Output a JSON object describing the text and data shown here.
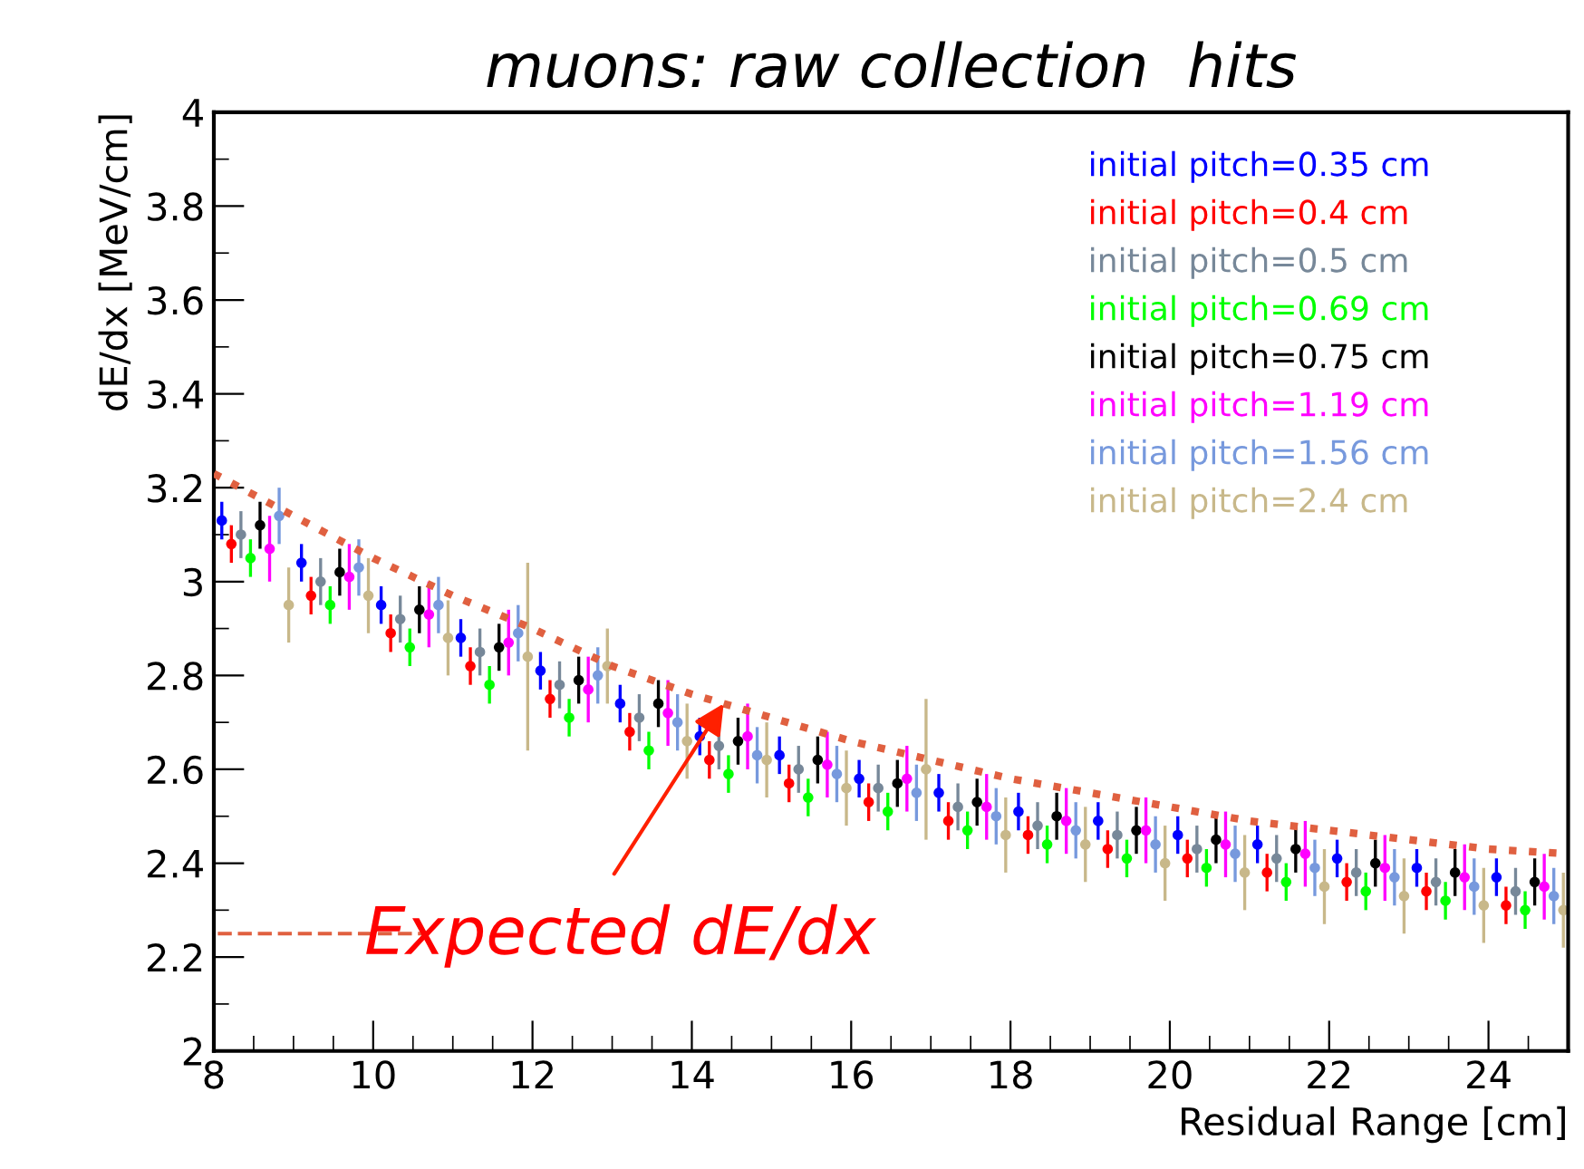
{
  "chart_data": {
    "type": "scatter",
    "title": "muons: raw collection  hits",
    "xlabel": "Residual Range [cm]",
    "ylabel": "dE/dx [MeV/cm]",
    "annotations": [
      {
        "text": "Expected dE/dx",
        "x": 14.4,
        "y": 2.74
      }
    ],
    "xlim": [
      8,
      25
    ],
    "xticks": [
      8,
      10,
      12,
      14,
      16,
      18,
      20,
      22,
      24
    ],
    "ylim": [
      2,
      4
    ],
    "yticks": [
      2,
      2.2,
      2.4,
      2.6,
      2.8,
      3,
      3.2,
      3.4,
      3.6,
      3.8,
      4
    ],
    "grid": false,
    "legend": "top right",
    "marker": "circle",
    "series": [
      {
        "name": "initial pitch=0.35 cm",
        "color": "#0000ff",
        "x": [
          8.1,
          9.1,
          10.1,
          11.1,
          12.1,
          13.1,
          14.1,
          15.1,
          16.1,
          17.1,
          18.1,
          19.1,
          20.1,
          21.1,
          22.1,
          23.1,
          24.1
        ],
        "values": [
          3.13,
          3.04,
          2.95,
          2.88,
          2.81,
          2.74,
          2.67,
          2.63,
          2.58,
          2.55,
          2.51,
          2.49,
          2.46,
          2.44,
          2.41,
          2.39,
          2.37
        ],
        "errors": [
          0.04,
          0.04,
          0.04,
          0.04,
          0.04,
          0.04,
          0.04,
          0.04,
          0.04,
          0.04,
          0.04,
          0.04,
          0.04,
          0.04,
          0.04,
          0.04,
          0.04
        ],
        "xerrors": [
          0.05,
          0.05,
          0.05,
          0.05,
          0.05,
          0.05,
          0.05,
          0.05,
          0.05,
          0.05,
          0.05,
          0.05,
          0.05,
          0.05,
          0.05,
          0.05,
          0.05
        ]
      },
      {
        "name": "initial pitch=0.4 cm",
        "color": "#ff0000",
        "x": [
          8.22,
          9.22,
          10.22,
          11.22,
          12.22,
          13.22,
          14.22,
          15.22,
          16.22,
          17.22,
          18.22,
          19.22,
          20.22,
          21.22,
          22.22,
          23.22,
          24.22
        ],
        "values": [
          3.08,
          2.97,
          2.89,
          2.82,
          2.75,
          2.68,
          2.62,
          2.57,
          2.53,
          2.49,
          2.46,
          2.43,
          2.41,
          2.38,
          2.36,
          2.34,
          2.31
        ],
        "errors": [
          0.04,
          0.04,
          0.04,
          0.04,
          0.04,
          0.04,
          0.04,
          0.04,
          0.04,
          0.04,
          0.04,
          0.04,
          0.04,
          0.04,
          0.04,
          0.04,
          0.04
        ],
        "xerrors": [
          0.05,
          0.05,
          0.05,
          0.05,
          0.05,
          0.05,
          0.05,
          0.05,
          0.05,
          0.05,
          0.05,
          0.05,
          0.05,
          0.05,
          0.05,
          0.05,
          0.05
        ]
      },
      {
        "name": "initial pitch=0.5 cm",
        "color": "#778899",
        "x": [
          8.34,
          9.34,
          10.34,
          11.34,
          12.34,
          13.34,
          14.34,
          15.34,
          16.34,
          17.34,
          18.34,
          19.34,
          20.34,
          21.34,
          22.34,
          23.34,
          24.34
        ],
        "values": [
          3.1,
          3.0,
          2.92,
          2.85,
          2.78,
          2.71,
          2.65,
          2.6,
          2.56,
          2.52,
          2.48,
          2.46,
          2.43,
          2.41,
          2.38,
          2.36,
          2.34
        ],
        "errors": [
          0.05,
          0.05,
          0.05,
          0.05,
          0.05,
          0.05,
          0.05,
          0.05,
          0.05,
          0.05,
          0.05,
          0.05,
          0.05,
          0.05,
          0.05,
          0.05,
          0.05
        ],
        "xerrors": [
          0.05,
          0.05,
          0.05,
          0.05,
          0.05,
          0.05,
          0.05,
          0.05,
          0.05,
          0.05,
          0.05,
          0.05,
          0.05,
          0.05,
          0.05,
          0.05,
          0.05
        ]
      },
      {
        "name": "initial pitch=0.69 cm",
        "color": "#00ff00",
        "x": [
          8.46,
          9.46,
          10.46,
          11.46,
          12.46,
          13.46,
          14.46,
          15.46,
          16.46,
          17.46,
          18.46,
          19.46,
          20.46,
          21.46,
          22.46,
          23.46,
          24.46
        ],
        "values": [
          3.05,
          2.95,
          2.86,
          2.78,
          2.71,
          2.64,
          2.59,
          2.54,
          2.51,
          2.47,
          2.44,
          2.41,
          2.39,
          2.36,
          2.34,
          2.32,
          2.3
        ],
        "errors": [
          0.04,
          0.04,
          0.04,
          0.04,
          0.04,
          0.04,
          0.04,
          0.04,
          0.04,
          0.04,
          0.04,
          0.04,
          0.04,
          0.04,
          0.04,
          0.04,
          0.04
        ],
        "xerrors": [
          0.05,
          0.05,
          0.05,
          0.05,
          0.05,
          0.05,
          0.05,
          0.05,
          0.05,
          0.05,
          0.05,
          0.05,
          0.05,
          0.05,
          0.05,
          0.05,
          0.05
        ]
      },
      {
        "name": "initial pitch=0.75 cm",
        "color": "#000000",
        "x": [
          8.58,
          9.58,
          10.58,
          11.58,
          12.58,
          13.58,
          14.58,
          15.58,
          16.58,
          17.58,
          18.58,
          19.58,
          20.58,
          21.58,
          22.58,
          23.58,
          24.58
        ],
        "values": [
          3.12,
          3.02,
          2.94,
          2.86,
          2.79,
          2.74,
          2.66,
          2.62,
          2.57,
          2.53,
          2.5,
          2.47,
          2.45,
          2.43,
          2.4,
          2.38,
          2.36
        ],
        "errors": [
          0.05,
          0.05,
          0.05,
          0.05,
          0.05,
          0.05,
          0.05,
          0.05,
          0.05,
          0.05,
          0.05,
          0.05,
          0.05,
          0.05,
          0.05,
          0.05,
          0.05
        ],
        "xerrors": [
          0.05,
          0.05,
          0.05,
          0.05,
          0.05,
          0.05,
          0.05,
          0.05,
          0.05,
          0.05,
          0.05,
          0.05,
          0.05,
          0.05,
          0.05,
          0.05,
          0.05
        ]
      },
      {
        "name": "initial pitch=1.19 cm",
        "color": "#ff00ff",
        "x": [
          8.7,
          9.7,
          10.7,
          11.7,
          12.7,
          13.7,
          14.7,
          15.7,
          16.7,
          17.7,
          18.7,
          19.7,
          20.7,
          21.7,
          22.7,
          23.7,
          24.7
        ],
        "values": [
          3.07,
          3.01,
          2.93,
          2.87,
          2.77,
          2.72,
          2.67,
          2.61,
          2.58,
          2.52,
          2.49,
          2.47,
          2.44,
          2.42,
          2.39,
          2.37,
          2.35
        ],
        "errors": [
          0.07,
          0.07,
          0.07,
          0.07,
          0.07,
          0.07,
          0.07,
          0.07,
          0.07,
          0.07,
          0.07,
          0.07,
          0.07,
          0.07,
          0.07,
          0.07,
          0.07
        ],
        "xerrors": [
          0.05,
          0.05,
          0.05,
          0.05,
          0.05,
          0.05,
          0.05,
          0.05,
          0.05,
          0.05,
          0.05,
          0.05,
          0.05,
          0.05,
          0.05,
          0.05,
          0.05
        ]
      },
      {
        "name": "initial pitch=1.56 cm",
        "color": "#7799dd",
        "x": [
          8.82,
          9.82,
          10.82,
          11.82,
          12.82,
          13.82,
          14.82,
          15.82,
          16.82,
          17.82,
          18.82,
          19.82,
          20.82,
          21.82,
          22.82,
          23.82,
          24.82
        ],
        "values": [
          3.14,
          3.03,
          2.95,
          2.89,
          2.8,
          2.7,
          2.63,
          2.59,
          2.55,
          2.5,
          2.47,
          2.44,
          2.42,
          2.39,
          2.37,
          2.35,
          2.33
        ],
        "errors": [
          0.06,
          0.06,
          0.06,
          0.06,
          0.06,
          0.06,
          0.06,
          0.06,
          0.06,
          0.06,
          0.06,
          0.06,
          0.06,
          0.06,
          0.06,
          0.06,
          0.06
        ],
        "xerrors": [
          0.05,
          0.05,
          0.05,
          0.05,
          0.05,
          0.05,
          0.05,
          0.05,
          0.05,
          0.05,
          0.05,
          0.05,
          0.05,
          0.05,
          0.05,
          0.05,
          0.05
        ]
      },
      {
        "name": "initial pitch=2.4 cm",
        "color": "#c8b88a",
        "x": [
          8.94,
          9.94,
          10.94,
          11.94,
          12.94,
          13.94,
          14.94,
          15.94,
          16.94,
          17.94,
          18.94,
          19.94,
          20.94,
          21.94,
          22.94,
          23.94,
          24.94
        ],
        "values": [
          2.95,
          2.97,
          2.88,
          2.84,
          2.82,
          2.66,
          2.62,
          2.56,
          2.6,
          2.46,
          2.44,
          2.4,
          2.38,
          2.35,
          2.33,
          2.31,
          2.3
        ],
        "errors": [
          0.08,
          0.08,
          0.08,
          0.2,
          0.08,
          0.08,
          0.08,
          0.08,
          0.15,
          0.08,
          0.08,
          0.08,
          0.08,
          0.08,
          0.08,
          0.08,
          0.08
        ],
        "xerrors": [
          0.05,
          0.05,
          0.05,
          0.05,
          0.05,
          0.05,
          0.05,
          0.05,
          0.05,
          0.05,
          0.05,
          0.05,
          0.05,
          0.05,
          0.05,
          0.05,
          0.05
        ]
      },
      {
        "type": "line",
        "marker": "none",
        "line_style": "dotted",
        "color": "#e06040",
        "x": [
          8,
          9,
          10,
          11,
          12,
          13,
          14,
          15,
          16,
          17,
          18,
          19,
          20,
          21,
          22,
          23,
          24,
          25
        ],
        "values": [
          3.23,
          3.14,
          3.05,
          2.97,
          2.9,
          2.82,
          2.76,
          2.71,
          2.66,
          2.62,
          2.58,
          2.55,
          2.52,
          2.49,
          2.47,
          2.45,
          2.43,
          2.42
        ]
      }
    ]
  }
}
